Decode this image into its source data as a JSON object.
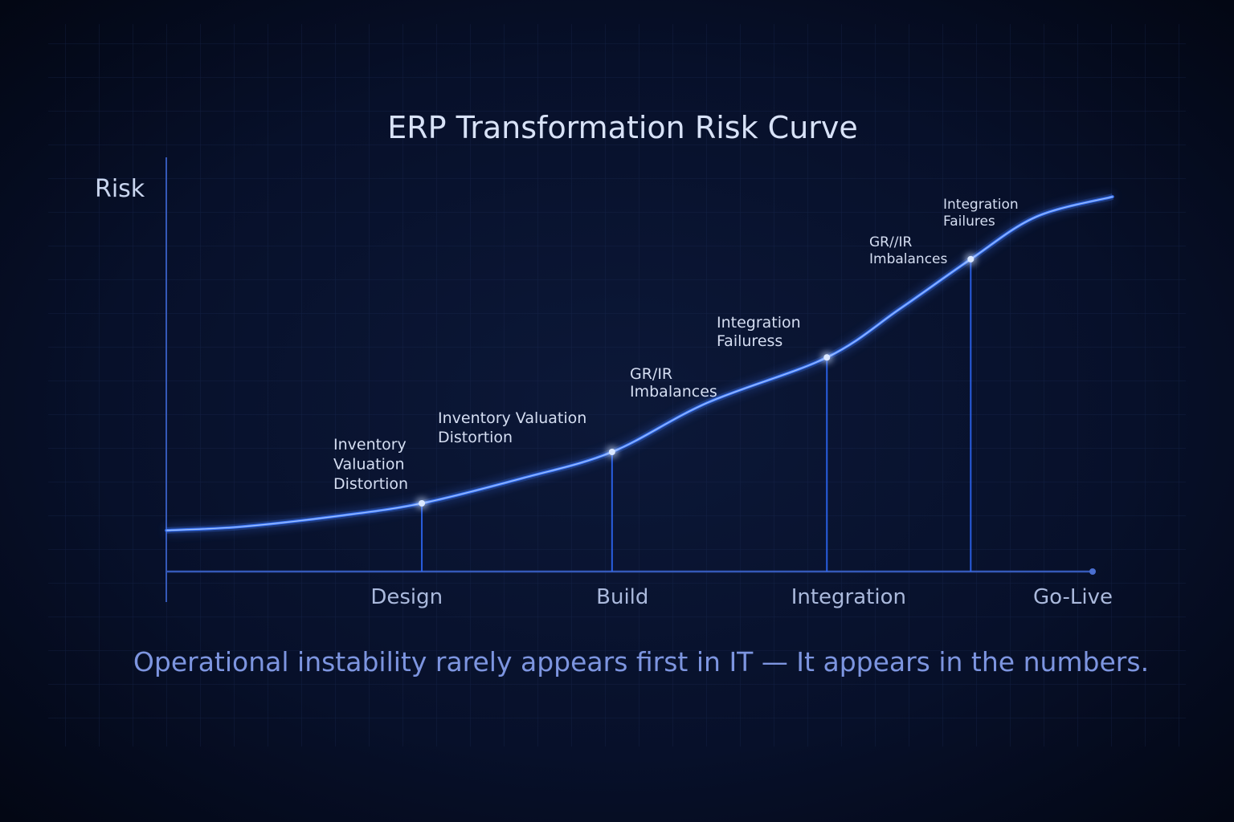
{
  "chart_data": {
    "type": "line",
    "title": "ERP Transformation Risk Curve",
    "y_label": "Risk",
    "subtitle": "Operational instability rarely appears first in IT — It appears in the numbers.",
    "xlim": [
      0,
      100
    ],
    "ylim": [
      0,
      100
    ],
    "color": "#3f7bff",
    "x": [
      0,
      7.9,
      18.1,
      27,
      37.6,
      47.1,
      57.1,
      69.8,
      77.5,
      85,
      91.9,
      100
    ],
    "values": [
      10,
      10.9,
      13.5,
      16.6,
      22.7,
      29.1,
      41,
      52.1,
      63.9,
      76,
      86.3,
      91.2
    ],
    "points": {
      "x": [
        27,
        47.1,
        69.8,
        85
      ],
      "values": [
        16.6,
        29.1,
        52.1,
        76
      ]
    },
    "categories": [
      "Design",
      "Build",
      "Integration",
      "Go-Live"
    ],
    "category_x": [
      25.4,
      48.2,
      72.1,
      95.8
    ],
    "annotations": [
      {
        "lines": [
          "Inventory",
          "Valuation",
          "Distortion"
        ]
      },
      {
        "lines": [
          "Inventory Valuation",
          "Distortion"
        ]
      },
      {
        "lines": [
          "GR/IR",
          "Imbalances"
        ]
      },
      {
        "lines": [
          "Integration",
          "Failuress"
        ]
      },
      {
        "lines": [
          "GR//IR",
          "Imbalances"
        ]
      },
      {
        "lines": [
          "Integration",
          "Failures"
        ]
      }
    ]
  }
}
